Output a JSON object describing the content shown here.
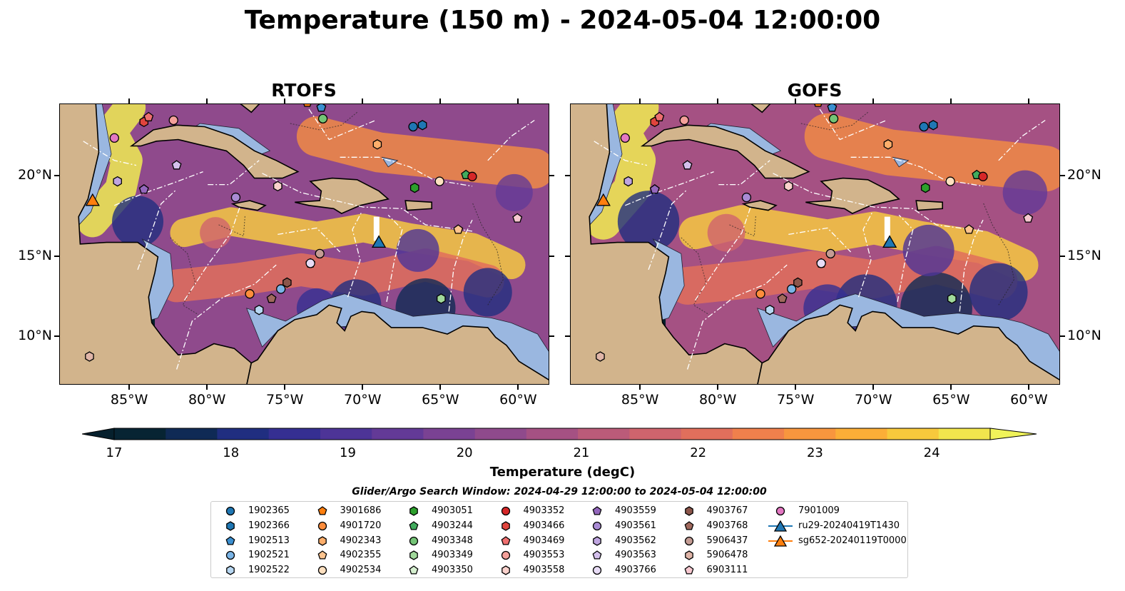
{
  "title": "Temperature (150 m) - 2024-05-04 12:00:00",
  "panels": [
    {
      "title": "RTOFS"
    },
    {
      "title": "GOFS"
    }
  ],
  "x_ticks": [
    "85°W",
    "80°W",
    "75°W",
    "70°W",
    "65°W",
    "60°W"
  ],
  "y_ticks": [
    "20°N",
    "15°N",
    "10°N"
  ],
  "colorbar": {
    "label": "Temperature (degC)",
    "ticks": [
      "17",
      "18",
      "19",
      "20",
      "21",
      "22",
      "23",
      "24"
    ],
    "range": [
      17,
      24.5
    ],
    "colors": [
      "#072433",
      "#0f2a55",
      "#202e80",
      "#352f92",
      "#4d3497",
      "#633a97",
      "#7a4293",
      "#8f4a8c",
      "#a55183",
      "#bb5b79",
      "#cf646d",
      "#e16f5c",
      "#f0804c",
      "#f8963e",
      "#fbae37",
      "#f7c93c",
      "#f1e54d"
    ],
    "under_color": "#06202d",
    "over_color": "#f0f35a"
  },
  "search_window": "Glider/Argo Search Window: 2024-04-29 12:00:00 to 2024-05-04 12:00:00",
  "map": {
    "lon_range": [
      -89.5,
      -58.0
    ],
    "lat_range": [
      7.0,
      24.5
    ],
    "land_color": "#d2b48c",
    "shelf_color": "#9ab7e0"
  },
  "legend": [
    {
      "label": "1902365",
      "color": "#1f77b4",
      "marker": "circle"
    },
    {
      "label": "1902366",
      "color": "#1f77b4",
      "marker": "hexagon"
    },
    {
      "label": "1902513",
      "color": "#3b8fd0",
      "marker": "pentagon"
    },
    {
      "label": "1902521",
      "color": "#7ab4e6",
      "marker": "circle"
    },
    {
      "label": "1902522",
      "color": "#b7d7f2",
      "marker": "hexagon"
    },
    {
      "label": "3901686",
      "color": "#ff7f0e",
      "marker": "pentagon"
    },
    {
      "label": "4901720",
      "color": "#fd8d3c",
      "marker": "circle"
    },
    {
      "label": "4902343",
      "color": "#fdae6b",
      "marker": "hexagon"
    },
    {
      "label": "4902355",
      "color": "#fdc48f",
      "marker": "pentagon"
    },
    {
      "label": "4902534",
      "color": "#fee0c0",
      "marker": "circle"
    },
    {
      "label": "4903051",
      "color": "#2ca02c",
      "marker": "hexagon"
    },
    {
      "label": "4903244",
      "color": "#41ab5d",
      "marker": "pentagon"
    },
    {
      "label": "4903348",
      "color": "#74c476",
      "marker": "circle"
    },
    {
      "label": "4903349",
      "color": "#a1d99b",
      "marker": "hexagon"
    },
    {
      "label": "4903350",
      "color": "#d5efcf",
      "marker": "pentagon"
    },
    {
      "label": "4903352",
      "color": "#d62728",
      "marker": "circle"
    },
    {
      "label": "4903466",
      "color": "#e0443d",
      "marker": "hexagon"
    },
    {
      "label": "4903469",
      "color": "#ef6f6f",
      "marker": "pentagon"
    },
    {
      "label": "4903553",
      "color": "#f4a09a",
      "marker": "circle"
    },
    {
      "label": "4903558",
      "color": "#fad1cc",
      "marker": "hexagon"
    },
    {
      "label": "4903559",
      "color": "#9467bd",
      "marker": "pentagon"
    },
    {
      "label": "4903561",
      "color": "#a98bd4",
      "marker": "circle"
    },
    {
      "label": "4903562",
      "color": "#bfa5e0",
      "marker": "hexagon"
    },
    {
      "label": "4903563",
      "color": "#d4c0ec",
      "marker": "pentagon"
    },
    {
      "label": "4903766",
      "color": "#e8dcf6",
      "marker": "circle"
    },
    {
      "label": "4903767",
      "color": "#8c564b",
      "marker": "hexagon"
    },
    {
      "label": "4903768",
      "color": "#a0695d",
      "marker": "pentagon"
    },
    {
      "label": "5906437",
      "color": "#c49c94",
      "marker": "circle"
    },
    {
      "label": "5906478",
      "color": "#e0b5a8",
      "marker": "hexagon"
    },
    {
      "label": "6903111",
      "color": "#f7c8d0",
      "marker": "pentagon"
    },
    {
      "label": "7901009",
      "color": "#e377c2",
      "marker": "circle"
    },
    {
      "label": "ru29-20240419T1430",
      "color": "#1f77b4",
      "marker": "triangle-line"
    },
    {
      "label": "sg652-20240119T0000",
      "color": "#ff7f0e",
      "marker": "triangle-line"
    }
  ],
  "floats": [
    {
      "id": "1902365",
      "lon": -66.8,
      "lat": 23.1
    },
    {
      "id": "1902366",
      "lon": -66.2,
      "lat": 23.2
    },
    {
      "id": "1902513",
      "lon": -72.7,
      "lat": 24.3
    },
    {
      "id": "1902521",
      "lon": -75.3,
      "lat": 13.0
    },
    {
      "id": "1902522",
      "lon": -76.7,
      "lat": 11.7
    },
    {
      "id": "3901686",
      "lon": -73.6,
      "lat": 24.6
    },
    {
      "id": "4901720",
      "lon": -77.3,
      "lat": 12.7
    },
    {
      "id": "4902343",
      "lon": -69.1,
      "lat": 22.0
    },
    {
      "id": "4902355",
      "lon": -63.9,
      "lat": 16.7
    },
    {
      "id": "4902534",
      "lon": -65.1,
      "lat": 19.7
    },
    {
      "id": "4903051",
      "lon": -66.7,
      "lat": 19.3
    },
    {
      "id": "4903244",
      "lon": -63.4,
      "lat": 20.1
    },
    {
      "id": "4903348",
      "lon": -72.6,
      "lat": 23.6
    },
    {
      "id": "4903349",
      "lon": -65.0,
      "lat": 12.4
    },
    {
      "id": "4903350",
      "lon": -73.4,
      "lat": 14.6
    },
    {
      "id": "4903352",
      "lon": -63.0,
      "lat": 20.0
    },
    {
      "id": "4903466",
      "lon": -84.1,
      "lat": 23.4
    },
    {
      "id": "4903469",
      "lon": -83.8,
      "lat": 23.7
    },
    {
      "id": "4903553",
      "lon": -82.2,
      "lat": 23.5
    },
    {
      "id": "4903558",
      "lon": -75.5,
      "lat": 19.4
    },
    {
      "id": "4903559",
      "lon": -84.1,
      "lat": 19.2
    },
    {
      "id": "4903561",
      "lon": -78.2,
      "lat": 18.7
    },
    {
      "id": "4903562",
      "lon": -85.8,
      "lat": 19.7
    },
    {
      "id": "4903563",
      "lon": -82.0,
      "lat": 20.7
    },
    {
      "id": "4903766",
      "lon": -73.4,
      "lat": 14.6
    },
    {
      "id": "4903767",
      "lon": -74.9,
      "lat": 13.4
    },
    {
      "id": "4903768",
      "lon": -75.9,
      "lat": 12.4
    },
    {
      "id": "5906437",
      "lon": -72.8,
      "lat": 15.2
    },
    {
      "id": "5906478",
      "lon": -87.6,
      "lat": 8.8
    },
    {
      "id": "6903111",
      "lon": -60.1,
      "lat": 17.4
    },
    {
      "id": "7901009",
      "lon": -86.0,
      "lat": 22.4
    },
    {
      "id": "ru29-20240419T1430",
      "lon": -69.0,
      "lat": 15.9
    },
    {
      "id": "sg652-20240119T0000",
      "lon": -87.4,
      "lat": 18.5
    }
  ]
}
